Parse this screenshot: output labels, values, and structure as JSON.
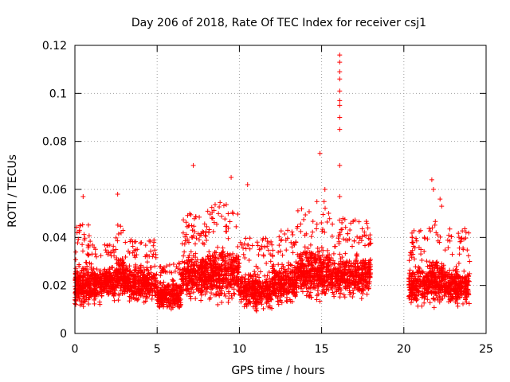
{
  "chart_data": {
    "type": "scatter",
    "title": "Day 206 of 2018, Rate Of TEC Index for receiver csj1",
    "xlabel": "GPS time / hours",
    "ylabel": "ROTI / TECUs",
    "xlim": [
      0,
      25
    ],
    "ylim": [
      0,
      0.12
    ],
    "x_ticks": [
      0,
      5,
      10,
      15,
      20,
      25
    ],
    "x_tick_labels": [
      "0",
      "5",
      "10",
      "15",
      "20",
      "25"
    ],
    "y_ticks": [
      0,
      0.02,
      0.04,
      0.06,
      0.08,
      0.1,
      0.12
    ],
    "y_tick_labels": [
      "0",
      "0.02",
      "0.04",
      "0.06",
      "0.08",
      "0.1",
      "0.12"
    ],
    "grid": true,
    "marker": "+",
    "color": "#ff0000",
    "data_gap_hours": [
      18.0,
      20.3
    ],
    "notable_points": [
      {
        "x": 0.5,
        "y": 0.057
      },
      {
        "x": 2.6,
        "y": 0.058
      },
      {
        "x": 7.2,
        "y": 0.07
      },
      {
        "x": 9.5,
        "y": 0.065
      },
      {
        "x": 10.5,
        "y": 0.062
      },
      {
        "x": 14.9,
        "y": 0.075
      },
      {
        "x": 15.2,
        "y": 0.06
      },
      {
        "x": 16.1,
        "y": 0.116
      },
      {
        "x": 16.1,
        "y": 0.113
      },
      {
        "x": 16.1,
        "y": 0.109
      },
      {
        "x": 16.1,
        "y": 0.106
      },
      {
        "x": 16.1,
        "y": 0.101
      },
      {
        "x": 16.1,
        "y": 0.097
      },
      {
        "x": 16.1,
        "y": 0.095
      },
      {
        "x": 16.1,
        "y": 0.09
      },
      {
        "x": 16.1,
        "y": 0.085
      },
      {
        "x": 16.1,
        "y": 0.07
      },
      {
        "x": 16.1,
        "y": 0.057
      },
      {
        "x": 21.7,
        "y": 0.064
      },
      {
        "x": 21.8,
        "y": 0.06
      },
      {
        "x": 22.2,
        "y": 0.056
      },
      {
        "x": 22.3,
        "y": 0.053
      }
    ],
    "segments": [
      {
        "x0": 0.0,
        "x1": 1.0,
        "base": 0.02,
        "spread": 0.012,
        "max": 0.047,
        "n": 260
      },
      {
        "x0": 1.0,
        "x1": 2.5,
        "base": 0.021,
        "spread": 0.01,
        "max": 0.038,
        "n": 300
      },
      {
        "x0": 2.5,
        "x1": 3.0,
        "base": 0.024,
        "spread": 0.012,
        "max": 0.046,
        "n": 110
      },
      {
        "x0": 3.0,
        "x1": 5.0,
        "base": 0.021,
        "spread": 0.01,
        "max": 0.039,
        "n": 380
      },
      {
        "x0": 5.0,
        "x1": 6.5,
        "base": 0.016,
        "spread": 0.008,
        "max": 0.03,
        "n": 280
      },
      {
        "x0": 6.5,
        "x1": 8.0,
        "base": 0.024,
        "spread": 0.013,
        "max": 0.05,
        "n": 330
      },
      {
        "x0": 8.0,
        "x1": 10.0,
        "base": 0.025,
        "spread": 0.014,
        "max": 0.055,
        "n": 420
      },
      {
        "x0": 10.0,
        "x1": 12.0,
        "base": 0.018,
        "spread": 0.01,
        "max": 0.04,
        "n": 380
      },
      {
        "x0": 12.0,
        "x1": 13.5,
        "base": 0.021,
        "spread": 0.011,
        "max": 0.043,
        "n": 300
      },
      {
        "x0": 13.5,
        "x1": 15.5,
        "base": 0.026,
        "spread": 0.014,
        "max": 0.056,
        "n": 420
      },
      {
        "x0": 15.5,
        "x1": 18.0,
        "base": 0.024,
        "spread": 0.012,
        "max": 0.048,
        "n": 460
      },
      {
        "x0": 20.3,
        "x1": 21.5,
        "base": 0.02,
        "spread": 0.01,
        "max": 0.044,
        "n": 240
      },
      {
        "x0": 21.5,
        "x1": 22.5,
        "base": 0.022,
        "spread": 0.012,
        "max": 0.047,
        "n": 220
      },
      {
        "x0": 22.5,
        "x1": 24.0,
        "base": 0.02,
        "spread": 0.01,
        "max": 0.044,
        "n": 300
      }
    ]
  }
}
